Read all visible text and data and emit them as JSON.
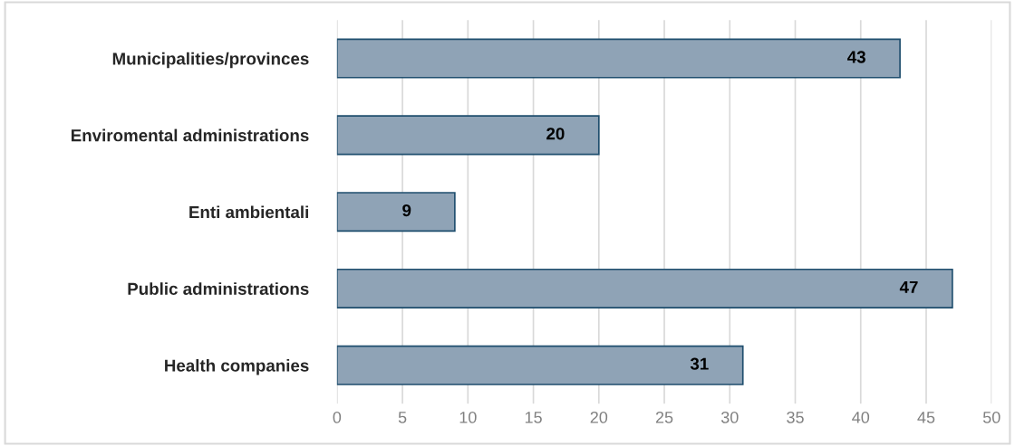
{
  "chart_data": {
    "type": "bar",
    "orientation": "horizontal",
    "categories": [
      "Municipalities/provinces",
      "Enviromental administrations",
      "Enti ambientali",
      "Public administrations",
      "Health companies"
    ],
    "values": [
      43,
      20,
      9,
      47,
      31
    ],
    "color": "#8fa3b6",
    "xlim": [
      0,
      50
    ],
    "xticks": [
      0,
      5,
      10,
      15,
      20,
      25,
      30,
      35,
      40,
      45,
      50
    ],
    "grid": "x",
    "data_labels": true
  }
}
